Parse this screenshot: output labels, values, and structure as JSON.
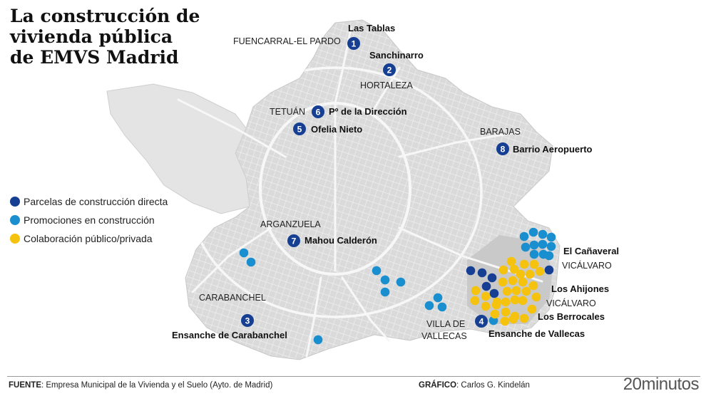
{
  "title_lines": [
    "La construcción de",
    "vivienda pública",
    "de EMVS  Madrid"
  ],
  "colors": {
    "directa": "#163f94",
    "construccion": "#1a8fcf",
    "colaboracion": "#f5c20d",
    "map_fill": "#dedede",
    "road": "#ffffff",
    "district_line": "#aaaaaa"
  },
  "legend": [
    {
      "key": "directa",
      "label": "Parcelas de construcción directa"
    },
    {
      "key": "construccion",
      "label": "Promociones en construcción"
    },
    {
      "key": "colaboracion",
      "label": "Colaboración público/privada"
    }
  ],
  "place_labels": [
    "FUENCARRAL-EL PARDO",
    "HORTALEZA",
    "TETUÁN",
    "BARAJAS",
    "ARGANZUELA",
    "CARABANCHEL",
    "VILLA DE",
    "VALLECAS",
    "VICÁLVARO",
    "VICÁLVARO"
  ],
  "sites": [
    {
      "number": "1",
      "name": "Las Tablas"
    },
    {
      "number": "2",
      "name": "Sanchinarro"
    },
    {
      "number": "6",
      "name": "Pº de la Dirección"
    },
    {
      "number": "5",
      "name": "Ofelia Nieto"
    },
    {
      "number": "8",
      "name": "Barrio Aeropuerto"
    },
    {
      "number": "7",
      "name": "Mahou Calderón"
    },
    {
      "number": "3",
      "name": "Ensanche de Carabanchel"
    },
    {
      "number": "4",
      "name": "Ensanche de Vallecas"
    }
  ],
  "area_labels": [
    "El Cañaveral",
    "Los Ahijones",
    "Los Berrocales"
  ],
  "footer": {
    "source_label": "FUENTE",
    "source_text": ": Empresa Municipal de la Vivienda y el Suelo (Ayto. de Madrid)",
    "graphic_label": "GRÁFICO",
    "graphic_text": ": Carlos G. Kindelán",
    "brand": "20minutos"
  }
}
